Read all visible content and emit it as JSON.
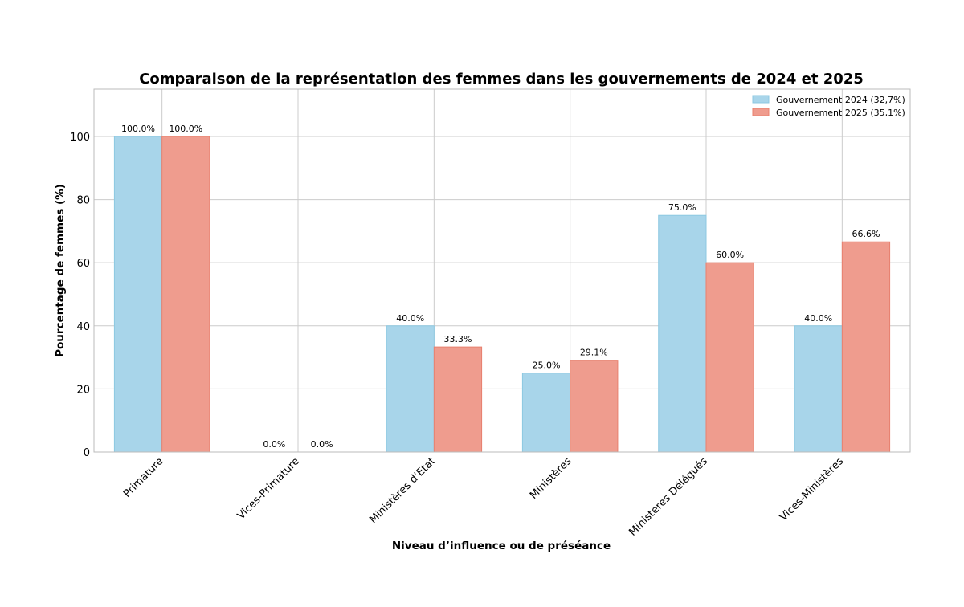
{
  "chart_data": {
    "type": "bar",
    "title": "Comparaison de la représentation des femmes dans les gouvernements de 2024 et 2025",
    "xlabel": "Niveau d’influence ou de préséance",
    "ylabel": "Pourcentage de femmes (%)",
    "ylim": [
      0,
      115
    ],
    "yticks": [
      0,
      20,
      40,
      60,
      80,
      100
    ],
    "grid": true,
    "legend_position": "top-right",
    "categories": [
      "Primature",
      "Vices-Primature",
      "Ministères d’Etat",
      "Ministères",
      "Ministères Délégués",
      "Vices-Ministères"
    ],
    "series": [
      {
        "name": "Gouvernement 2024 (32,7%)",
        "color": "#a8d5ea",
        "edge_color": "#8cc8e2",
        "values": [
          100.0,
          0.0,
          40.0,
          25.0,
          75.0,
          40.0
        ],
        "labels": [
          "100.0%",
          "0.0%",
          "40.0%",
          "25.0%",
          "75.0%",
          "40.0%"
        ]
      },
      {
        "name": "Gouvernement 2025 (35,1%)",
        "color": "#ef9c8e",
        "edge_color": "#e8806e",
        "values": [
          100.0,
          0.0,
          33.3,
          29.1,
          60.0,
          66.6
        ],
        "labels": [
          "100.0%",
          "0.0%",
          "33.3%",
          "29.1%",
          "60.0%",
          "66.6%"
        ]
      }
    ]
  }
}
